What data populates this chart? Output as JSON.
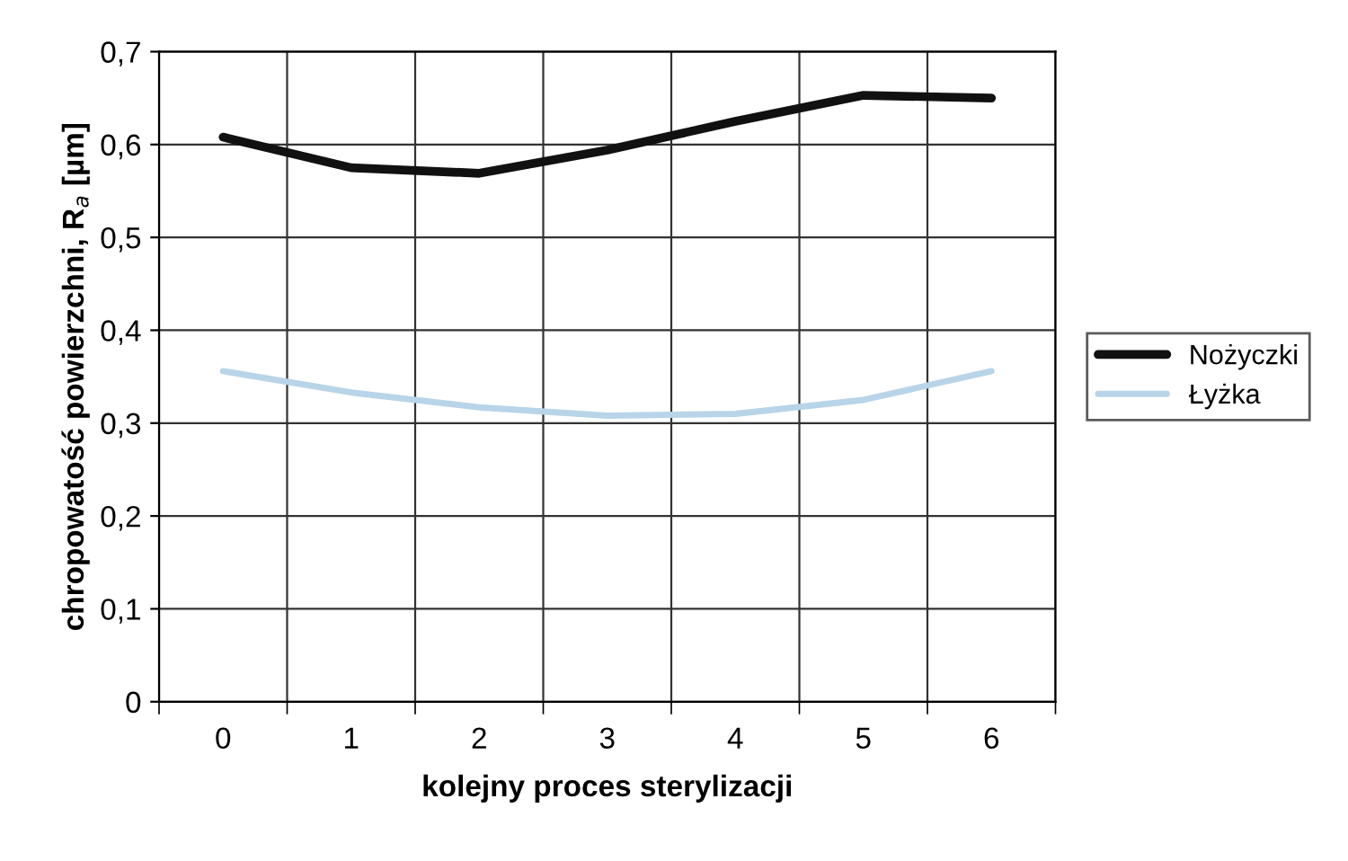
{
  "chart_data": {
    "type": "line",
    "xlabel": "kolejny proces sterylizacji",
    "ylabel": "chropowatość powierzchni, R$_{a}$ [µm]",
    "categories": [
      "0",
      "1",
      "2",
      "3",
      "4",
      "5",
      "6"
    ],
    "series": [
      {
        "name": "Nożyczki",
        "color": "#111111",
        "values": [
          0.608,
          0.575,
          0.569,
          0.594,
          0.625,
          0.653,
          0.65
        ]
      },
      {
        "name": "Łyżka",
        "color": "#b8d4e8",
        "values": [
          0.356,
          0.333,
          0.317,
          0.308,
          0.31,
          0.325,
          0.356
        ]
      }
    ],
    "ylim": [
      0,
      0.7
    ],
    "yticks": [
      {
        "value": 0,
        "label": "0"
      },
      {
        "value": 0.1,
        "label": "0,1"
      },
      {
        "value": 0.2,
        "label": "0,2"
      },
      {
        "value": 0.3,
        "label": "0,3"
      },
      {
        "value": 0.4,
        "label": "0,4"
      },
      {
        "value": 0.5,
        "label": "0,5"
      },
      {
        "value": 0.6,
        "label": "0,6"
      },
      {
        "value": 0.7,
        "label": "0,7"
      }
    ],
    "grid": true,
    "legend": "right",
    "marker": "none",
    "line_style": "solid"
  }
}
